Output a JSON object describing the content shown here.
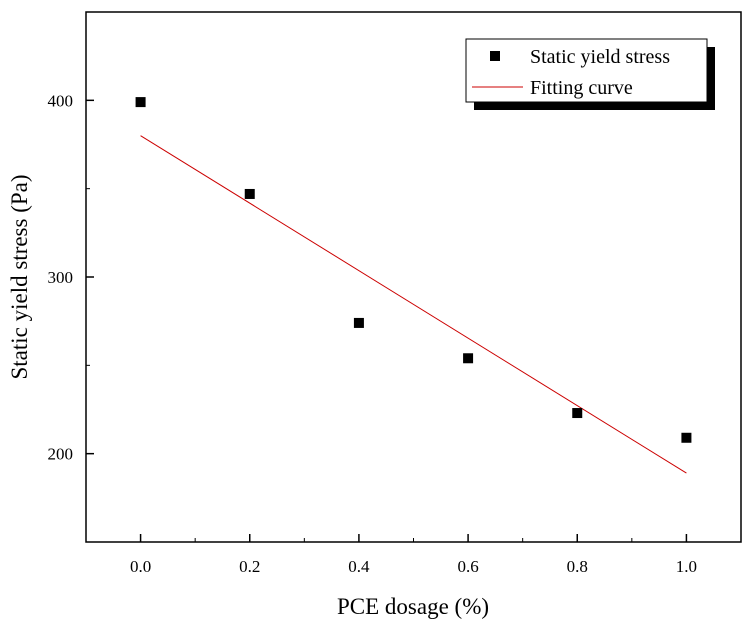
{
  "chart_data": {
    "type": "scatter",
    "xlabel": "PCE dosage (%)",
    "ylabel": "Static yield stress (Pa)",
    "xlim": [
      -0.1,
      1.1
    ],
    "ylim": [
      150,
      450
    ],
    "x_ticks": [
      0.0,
      0.2,
      0.4,
      0.6,
      0.8,
      1.0
    ],
    "x_tick_labels": [
      "0.0",
      "0.2",
      "0.4",
      "0.6",
      "0.8",
      "1.0"
    ],
    "y_ticks": [
      200,
      300,
      400
    ],
    "y_tick_labels": [
      "200",
      "300",
      "400"
    ],
    "grid": false,
    "legend_position": "top-right",
    "series": [
      {
        "name": "Static yield stress",
        "kind": "scatter",
        "marker": "square",
        "color": "#000000",
        "x": [
          0.0,
          0.2,
          0.4,
          0.6,
          0.8,
          1.0
        ],
        "y": [
          399,
          347,
          274,
          254,
          223,
          209
        ]
      },
      {
        "name": "Fitting curve",
        "kind": "line",
        "color": "#cc0000",
        "x": [
          0.0,
          1.0
        ],
        "y": [
          380,
          189
        ]
      }
    ]
  }
}
